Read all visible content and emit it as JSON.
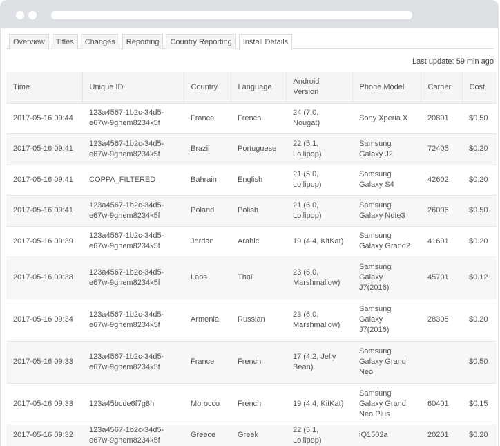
{
  "tabs": [
    "Overview",
    "Titles",
    "Changes",
    "Reporting",
    "Country Reporting",
    "Install Details"
  ],
  "active_tab": "Install Details",
  "last_update": "Last update: 59 min ago",
  "columns": [
    "Time",
    "Unique ID",
    "Country",
    "Language",
    "Android Version",
    "Phone Model",
    "Carrier",
    "Cost"
  ],
  "rows": [
    [
      "2017-05-16 09:44",
      "123a4567-1b2c-34d5-e67w-9ghem8234k5f",
      "France",
      "French",
      "24 (7.0, Nougat)",
      "Sony Xperia X",
      "20801",
      "$0.50"
    ],
    [
      "2017-05-16 09:41",
      "123a4567-1b2c-34d5-e67w-9ghem8234k5f",
      "Brazil",
      "Portuguese",
      "22 (5.1, Lollipop)",
      "Samsung Galaxy J2",
      "72405",
      "$0.20"
    ],
    [
      "2017-05-16 09:41",
      "COPPA_FILTERED",
      "Bahrain",
      "English",
      "21 (5.0, Lollipop)",
      "Samsung Galaxy S4",
      "42602",
      "$0.20"
    ],
    [
      "2017-05-16 09:41",
      "123a4567-1b2c-34d5-e67w-9ghem8234k5f",
      "Poland",
      "Polish",
      "21 (5.0, Lollipop)",
      "Samsung Galaxy Note3",
      "26006",
      "$0.50"
    ],
    [
      "2017-05-16 09:39",
      "123a4567-1b2c-34d5-e67w-9ghem8234k5f",
      "Jordan",
      "Arabic",
      "19 (4.4, KitKat)",
      "Samsung Galaxy Grand2",
      "41601",
      "$0.20"
    ],
    [
      "2017-05-16 09:38",
      "123a4567-1b2c-34d5-e67w-9ghem8234k5f",
      "Laos",
      "Thai",
      "23 (6.0, Marshmallow)",
      "Samsung Galaxy J7(2016)",
      "45701",
      "$0.12"
    ],
    [
      "2017-05-16 09:34",
      "123a4567-1b2c-34d5-e67w-9ghem8234k5f",
      "Armenia",
      "Russian",
      "23 (6.0, Marshmallow)",
      "Samsung Galaxy J7(2016)",
      "28305",
      "$0.20"
    ],
    [
      "2017-05-16 09:33",
      "123a4567-1b2c-34d5-e67w-9ghem8234k5f",
      "France",
      "French",
      "17 (4.2, Jelly Bean)",
      "Samsung Galaxy Grand Neo",
      "",
      "$0.50"
    ],
    [
      "2017-05-16 09:33",
      "123a45bcde6f7g8h",
      "Morocco",
      "French",
      "19 (4.4, KitKat)",
      "Samsung Galaxy Grand Neo Plus",
      "60401",
      "$0.15"
    ],
    [
      "2017-05-16 09:32",
      "123a4567-1b2c-34d5-e67w-9ghem8234k5f",
      "Greece",
      "Greek",
      "22 (5.1, Lollipop)",
      "iQ1502a",
      "20201",
      "$0.20"
    ]
  ]
}
